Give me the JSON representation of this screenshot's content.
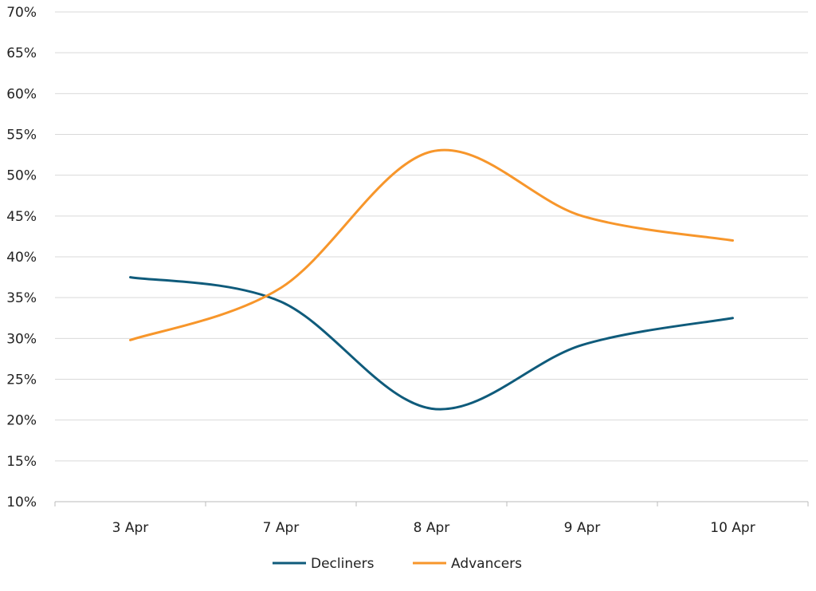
{
  "chart_data": {
    "type": "line",
    "smooth": true,
    "categories": [
      "3 Apr",
      "7 Apr",
      "8 Apr",
      "9 Apr",
      "10 Apr"
    ],
    "ylim": [
      10,
      70
    ],
    "yticks": [
      10,
      15,
      20,
      25,
      30,
      35,
      40,
      45,
      50,
      55,
      60,
      65,
      70
    ],
    "ytick_labels": [
      "10%",
      "15%",
      "20%",
      "25%",
      "30%",
      "35%",
      "40%",
      "45%",
      "50%",
      "55%",
      "60%",
      "65%",
      "70%"
    ],
    "grid": "horizontal",
    "legend_position": "bottom",
    "series": [
      {
        "name": "Decliners",
        "color": "#0f5b7b",
        "values": [
          37.5,
          34.5,
          21.4,
          29.2,
          32.5
        ]
      },
      {
        "name": "Advancers",
        "color": "#f7962b",
        "values": [
          29.8,
          36.2,
          52.9,
          45.0,
          42.0
        ]
      }
    ]
  }
}
